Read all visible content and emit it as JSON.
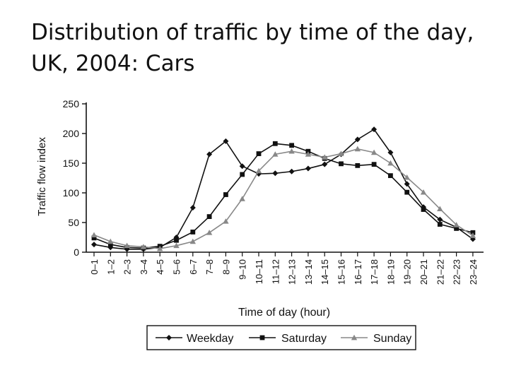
{
  "slide": {
    "title": "Distribution of traffic by time of the day, UK, 2004: Cars"
  },
  "chart_data": {
    "type": "line",
    "title": "Distribution of traffic by time of the day, UK, 2004: Cars",
    "xlabel": "Time of day (hour)",
    "ylabel": "Traffic flow index",
    "ylim": [
      0,
      250
    ],
    "yticks": [
      0,
      50,
      100,
      150,
      200,
      250
    ],
    "grid": false,
    "legend_position": "bottom",
    "categories": [
      "0–1",
      "1–2",
      "2–3",
      "3–4",
      "4–5",
      "5–6",
      "6–7",
      "7–8",
      "8–9",
      "9–10",
      "10–11",
      "11–12",
      "12–13",
      "13–14",
      "14–15",
      "15–16",
      "16–17",
      "17–18",
      "18–19",
      "19–20",
      "20–21",
      "21–22",
      "22–23",
      "23–24"
    ],
    "series": [
      {
        "name": "Weekday",
        "marker": "diamond",
        "color": "#111111",
        "values": [
          13,
          8,
          5,
          5,
          8,
          25,
          75,
          165,
          187,
          145,
          132,
          133,
          136,
          141,
          148,
          165,
          190,
          207,
          168,
          115,
          76,
          55,
          42,
          22
        ]
      },
      {
        "name": "Saturday",
        "marker": "square",
        "color": "#111111",
        "values": [
          24,
          13,
          8,
          7,
          10,
          20,
          34,
          60,
          97,
          131,
          166,
          183,
          180,
          170,
          158,
          149,
          146,
          148,
          129,
          101,
          72,
          47,
          40,
          33
        ]
      },
      {
        "name": "Sunday",
        "marker": "triangle",
        "color": "#888888",
        "values": [
          29,
          18,
          11,
          9,
          6,
          11,
          18,
          33,
          52,
          90,
          137,
          165,
          170,
          165,
          160,
          166,
          174,
          168,
          150,
          126,
          101,
          73,
          46,
          28
        ]
      }
    ]
  }
}
